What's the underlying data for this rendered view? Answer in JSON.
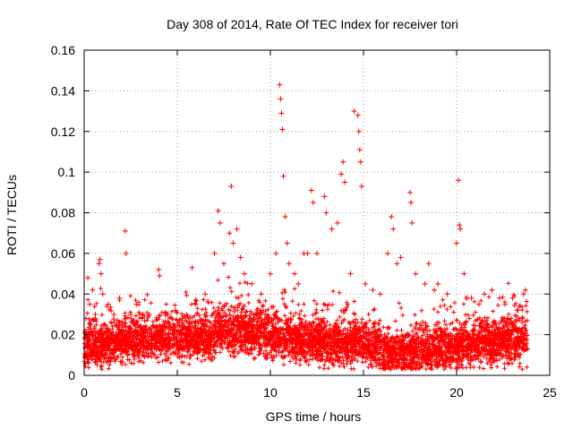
{
  "chart_data": {
    "type": "scatter",
    "title": "Day 308 of 2014, Rate Of TEC Index for receiver tori",
    "xlabel": "GPS time / hours",
    "ylabel": "ROTI / TECUs",
    "xlim": [
      0,
      25
    ],
    "ylim": [
      0,
      0.16
    ],
    "xticks": [
      "0",
      "5",
      "10",
      "15",
      "20",
      "25"
    ],
    "yticks": [
      "0",
      "0.02",
      "0.04",
      "0.06",
      "0.08",
      "0.1",
      "0.12",
      "0.14",
      "0.16"
    ],
    "grid": true,
    "marker": "+",
    "color": "#ff0000",
    "series": [
      {
        "name": "ROTI",
        "x": [
          0.1,
          0.2,
          0.3,
          0.45,
          0.6,
          0.8,
          0.85,
          0.9,
          1.0,
          1.3,
          1.6,
          1.9,
          2.2,
          2.25,
          2.5,
          2.8,
          3.1,
          3.5,
          4.0,
          4.05,
          4.5,
          4.9,
          5.5,
          5.8,
          6.0,
          6.5,
          7.0,
          7.2,
          7.3,
          7.5,
          7.8,
          7.9,
          8.0,
          8.2,
          8.4,
          8.6,
          9.0,
          9.5,
          10.0,
          10.3,
          10.5,
          10.55,
          10.6,
          10.65,
          10.7,
          10.8,
          10.9,
          11.0,
          11.3,
          11.5,
          11.8,
          12.0,
          12.2,
          12.3,
          12.5,
          12.9,
          13.0,
          13.3,
          13.6,
          13.8,
          13.9,
          14.0,
          14.3,
          14.5,
          14.7,
          14.75,
          14.8,
          14.85,
          14.9,
          15.1,
          15.5,
          15.9,
          16.3,
          16.5,
          16.6,
          16.8,
          17.0,
          17.5,
          17.55,
          17.6,
          17.8,
          18.3,
          18.5,
          18.8,
          19.0,
          19.5,
          20.0,
          20.1,
          20.15,
          20.2,
          20.4,
          20.8,
          21.2,
          21.5,
          21.9,
          22.3,
          22.6,
          23.0,
          23.3,
          23.6,
          23.7
        ],
        "y": [
          0.028,
          0.048,
          0.035,
          0.042,
          0.03,
          0.055,
          0.057,
          0.05,
          0.04,
          0.035,
          0.03,
          0.038,
          0.071,
          0.06,
          0.03,
          0.035,
          0.028,
          0.03,
          0.052,
          0.049,
          0.03,
          0.032,
          0.03,
          0.053,
          0.035,
          0.04,
          0.06,
          0.081,
          0.075,
          0.055,
          0.07,
          0.093,
          0.065,
          0.072,
          0.058,
          0.05,
          0.045,
          0.04,
          0.05,
          0.06,
          0.143,
          0.136,
          0.129,
          0.121,
          0.098,
          0.078,
          0.065,
          0.055,
          0.05,
          0.045,
          0.06,
          0.06,
          0.091,
          0.085,
          0.06,
          0.088,
          0.08,
          0.072,
          0.075,
          0.099,
          0.105,
          0.095,
          0.05,
          0.13,
          0.128,
          0.12,
          0.111,
          0.105,
          0.093,
          0.045,
          0.042,
          0.04,
          0.06,
          0.078,
          0.072,
          0.055,
          0.058,
          0.09,
          0.085,
          0.075,
          0.05,
          0.045,
          0.055,
          0.042,
          0.045,
          0.04,
          0.065,
          0.096,
          0.074,
          0.072,
          0.05,
          0.038,
          0.035,
          0.04,
          0.042,
          0.038,
          0.035,
          0.038,
          0.032,
          0.04,
          0.042
        ]
      }
    ],
    "band_note": "Dense band of points concentrated between 0.005 and 0.035 across 0 to 23.8 hours"
  }
}
